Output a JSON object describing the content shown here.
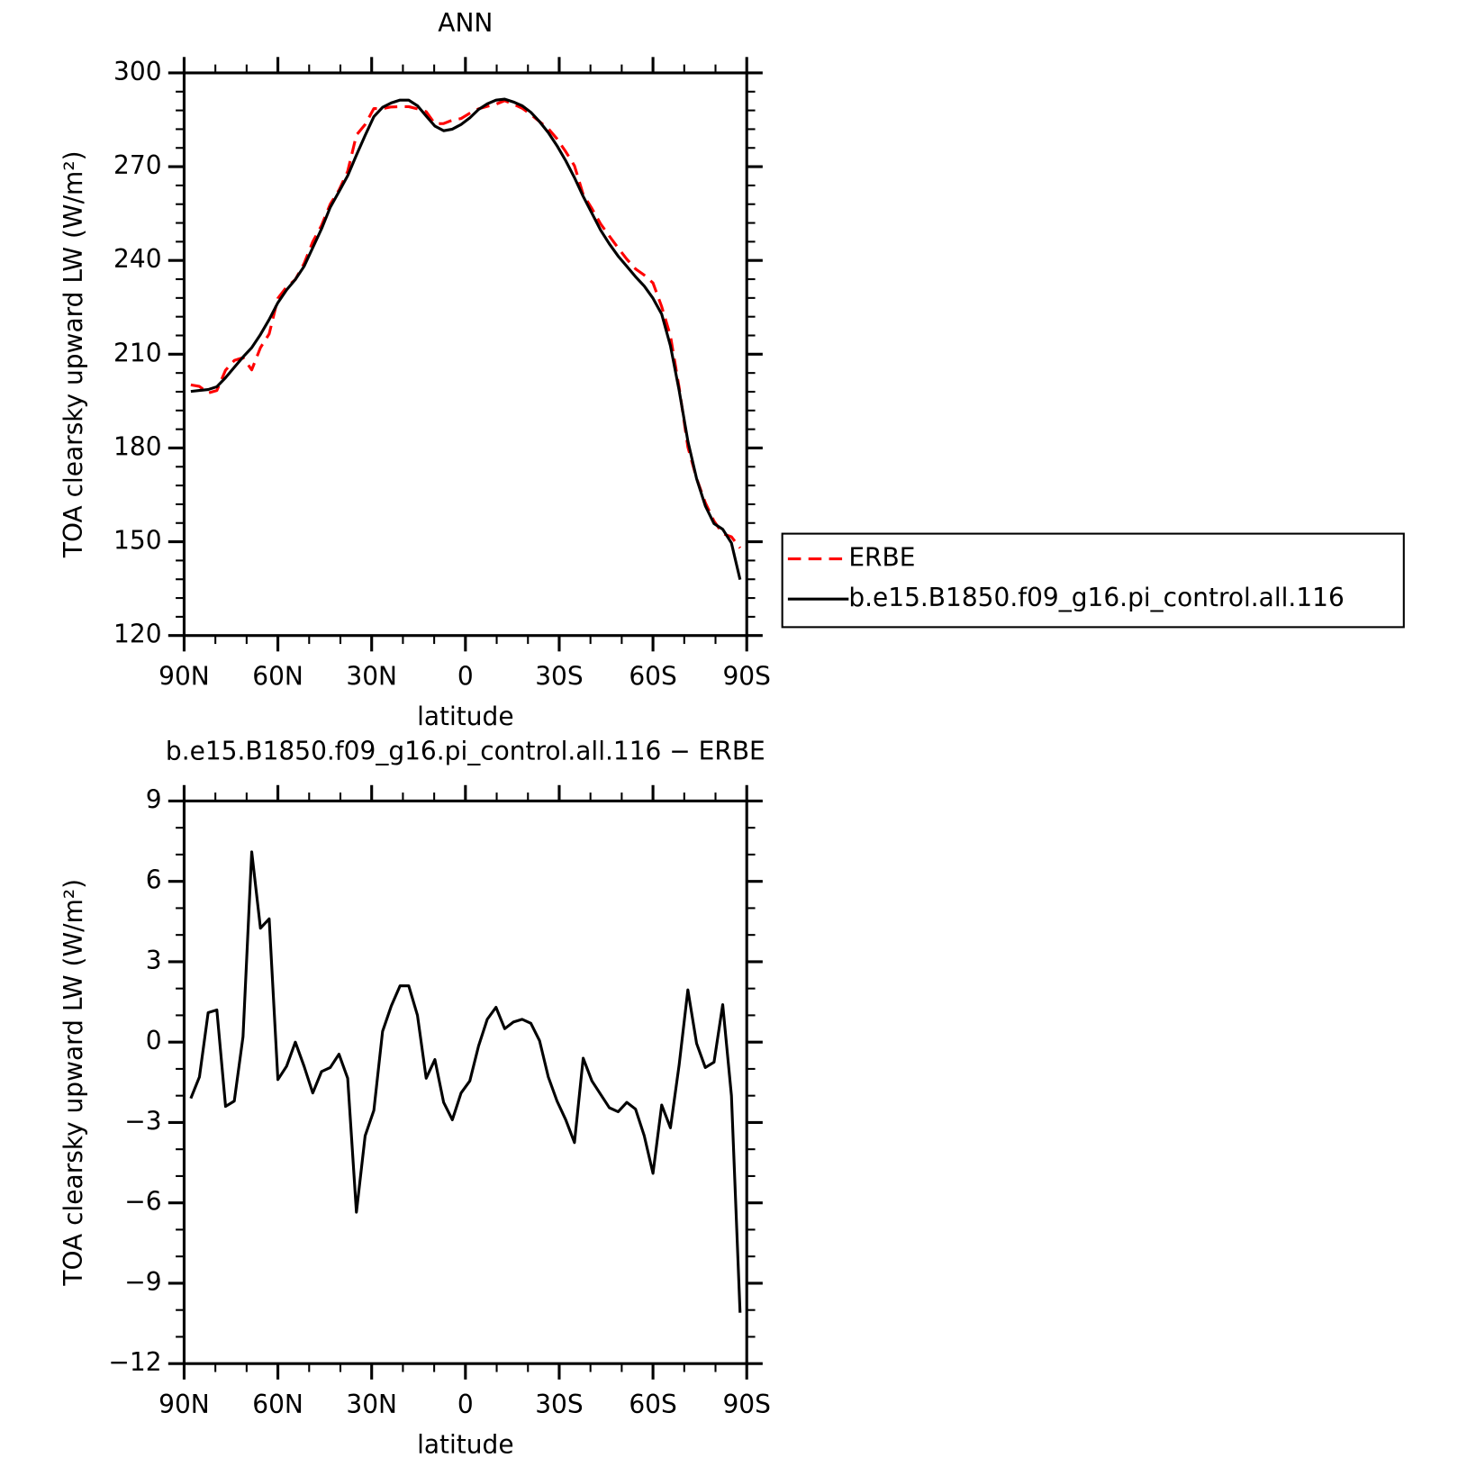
{
  "chart_data": [
    {
      "type": "line",
      "title": "ANN",
      "xlabel": "latitude",
      "ylabel": "TOA clearsky upward LW (W/m²)",
      "x": [
        87.86,
        85.1,
        82.31,
        79.53,
        76.74,
        73.95,
        71.16,
        68.37,
        65.58,
        62.79,
        60.0,
        57.21,
        54.42,
        51.63,
        48.84,
        46.04,
        43.25,
        40.46,
        37.67,
        34.88,
        32.09,
        29.3,
        26.51,
        23.72,
        20.93,
        18.14,
        15.35,
        12.56,
        9.77,
        6.98,
        4.19,
        1.4,
        -1.4,
        -4.19,
        -6.98,
        -9.77,
        -12.56,
        -15.35,
        -18.14,
        -20.93,
        -23.72,
        -26.51,
        -29.3,
        -32.09,
        -34.88,
        -37.67,
        -40.46,
        -43.25,
        -46.04,
        -48.84,
        -51.63,
        -54.42,
        -57.21,
        -60.0,
        -62.79,
        -65.58,
        -68.37,
        -71.16,
        -73.95,
        -76.74,
        -79.53,
        -82.31,
        -85.1,
        -87.86
      ],
      "series": [
        {
          "name": "ERBE",
          "color": "#ff0000",
          "linestyle": "dashed",
          "values": [
            200.2,
            199.7,
            197.6,
            198.4,
            204.9,
            208.0,
            208.9,
            205.0,
            212.1,
            216.5,
            227.9,
            231.5,
            233.9,
            239.0,
            246.0,
            251.2,
            258.0,
            262.5,
            268.5,
            280.1,
            283.5,
            288.6,
            288.6,
            289.1,
            289.2,
            289.2,
            288.5,
            287.6,
            283.7,
            283.8,
            284.9,
            285.4,
            287.1,
            288.5,
            289.3,
            290.0,
            291.1,
            290.0,
            288.7,
            286.7,
            284.4,
            282.2,
            278.9,
            274.8,
            270.3,
            261.1,
            256.6,
            251.7,
            247.8,
            244.0,
            240.4,
            237.3,
            235.3,
            232.8,
            225.2,
            215.9,
            199.3,
            180.3,
            170.3,
            162.5,
            156.6,
            152.6,
            151.6,
            148.0
          ]
        },
        {
          "name": "b.e15.B1850.f09_g16.pi_control.all.116",
          "color": "#000000",
          "linestyle": "solid",
          "values": [
            198.1,
            198.4,
            198.7,
            199.6,
            202.5,
            205.8,
            209.1,
            212.1,
            216.3,
            221.1,
            226.5,
            230.6,
            233.9,
            238.1,
            244.1,
            250.1,
            257.0,
            262.0,
            267.1,
            273.7,
            280.0,
            286.0,
            289.0,
            290.4,
            291.3,
            291.3,
            289.5,
            286.2,
            283.0,
            281.5,
            282.0,
            283.5,
            285.6,
            288.3,
            290.1,
            291.3,
            291.6,
            290.7,
            289.5,
            287.4,
            284.4,
            280.9,
            276.7,
            271.9,
            266.5,
            260.5,
            255.1,
            249.7,
            245.3,
            241.4,
            238.1,
            234.8,
            231.8,
            227.9,
            222.8,
            212.7,
            198.4,
            182.2,
            170.2,
            161.5,
            155.8,
            154.0,
            149.6,
            137.9
          ]
        }
      ],
      "xlim": [
        90,
        -90
      ],
      "xticks": [
        {
          "value": 90,
          "label": "90N"
        },
        {
          "value": 60,
          "label": "60N"
        },
        {
          "value": 30,
          "label": "30N"
        },
        0,
        {
          "value": -30,
          "label": "30S"
        },
        {
          "value": -60,
          "label": "60S"
        },
        {
          "value": -90,
          "label": "90S"
        }
      ],
      "ylim": [
        120,
        300
      ],
      "yticks": [
        120,
        150,
        180,
        210,
        240,
        270,
        300
      ],
      "legend": "outside-right"
    },
    {
      "type": "line",
      "title": "b.e15.B1850.f09_g16.pi_control.all.116 − ERBE",
      "xlabel": "latitude",
      "ylabel": "TOA clearsky upward LW (W/m²)",
      "x": [
        87.86,
        85.1,
        82.31,
        79.53,
        76.74,
        73.95,
        71.16,
        68.37,
        65.58,
        62.79,
        60.0,
        57.21,
        54.42,
        51.63,
        48.84,
        46.04,
        43.25,
        40.46,
        37.67,
        34.88,
        32.09,
        29.3,
        26.51,
        23.72,
        20.93,
        18.14,
        15.35,
        12.56,
        9.77,
        6.98,
        4.19,
        1.4,
        -1.4,
        -4.19,
        -6.98,
        -9.77,
        -12.56,
        -15.35,
        -18.14,
        -20.93,
        -23.72,
        -26.51,
        -29.3,
        -32.09,
        -34.88,
        -37.67,
        -40.46,
        -43.25,
        -46.04,
        -48.84,
        -51.63,
        -54.42,
        -57.21,
        -60.0,
        -62.79,
        -65.58,
        -68.37,
        -71.16,
        -73.95,
        -76.74,
        -79.53,
        -82.31,
        -85.1,
        -87.86
      ],
      "series": [
        {
          "color": "#000000",
          "linestyle": "solid",
          "values": [
            -2.1,
            -1.3,
            1.1,
            1.2,
            -2.4,
            -2.2,
            0.2,
            7.1,
            4.25,
            4.6,
            -1.4,
            -0.9,
            0,
            -0.9,
            -1.9,
            -1.1,
            -0.95,
            -0.45,
            -1.35,
            -6.35,
            -3.5,
            -2.55,
            0.4,
            1.35,
            2.1,
            2.1,
            1.0,
            -1.35,
            -0.65,
            -2.25,
            -2.9,
            -1.9,
            -1.45,
            -0.15,
            0.85,
            1.3,
            0.5,
            0.75,
            0.85,
            0.7,
            0.05,
            -1.3,
            -2.2,
            -2.9,
            -3.75,
            -0.6,
            -1.45,
            -1.95,
            -2.45,
            -2.6,
            -2.25,
            -2.5,
            -3.5,
            -4.9,
            -2.35,
            -3.2,
            -0.85,
            1.95,
            -0.05,
            -0.95,
            -0.75,
            1.4,
            -2.0,
            -10.1
          ]
        }
      ],
      "xlim": [
        90,
        -90
      ],
      "xticks": [
        {
          "value": 90,
          "label": "90N"
        },
        {
          "value": 60,
          "label": "60N"
        },
        {
          "value": 30,
          "label": "30N"
        },
        0,
        {
          "value": -30,
          "label": "30S"
        },
        {
          "value": -60,
          "label": "60S"
        },
        {
          "value": -90,
          "label": "90S"
        }
      ],
      "ylim": [
        -12,
        9
      ],
      "yticks": [
        {
          "value": -12,
          "label": "−12"
        },
        {
          "value": -9,
          "label": "−9"
        },
        {
          "value": -6,
          "label": "−6"
        },
        {
          "value": -3,
          "label": "−3"
        },
        0,
        3,
        6,
        9
      ]
    }
  ]
}
